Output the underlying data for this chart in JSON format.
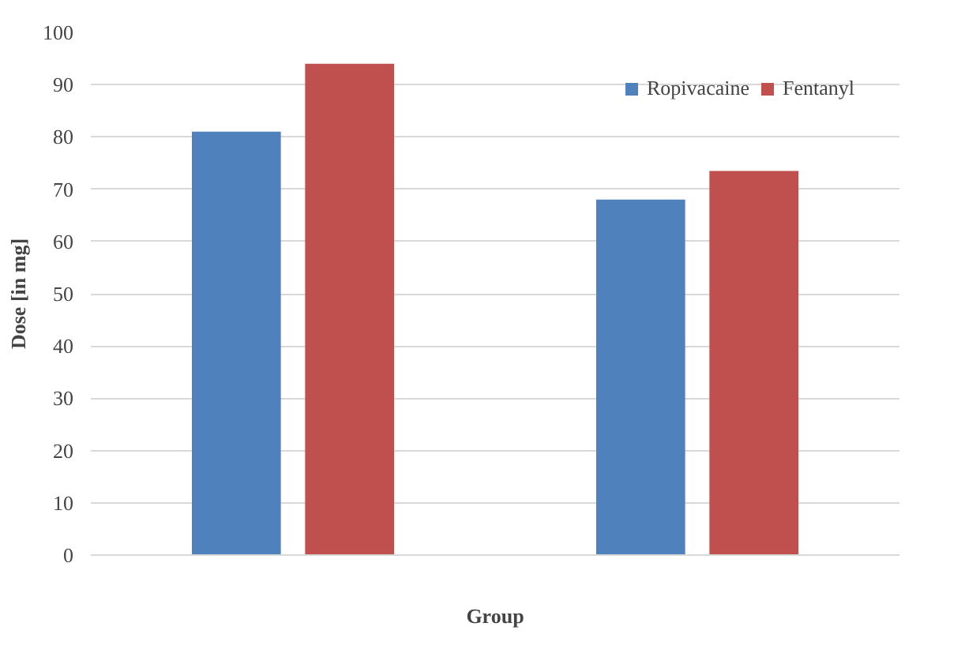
{
  "chart_data": {
    "type": "bar",
    "xlabel": "Group",
    "ylabel": "Dose [in mg]",
    "categories": [
      null,
      null
    ],
    "series": [
      {
        "name": "Ropivacaine",
        "color": "#4f81bd",
        "values": [
          81,
          68
        ]
      },
      {
        "name": "Fentanyl",
        "color": "#c0504d",
        "values": [
          94,
          73.5
        ]
      }
    ],
    "ylim": [
      0,
      100
    ],
    "yticks": [
      0,
      10,
      20,
      30,
      40,
      50,
      60,
      70,
      80,
      90,
      100
    ],
    "grid": "y",
    "legend": "top right"
  }
}
